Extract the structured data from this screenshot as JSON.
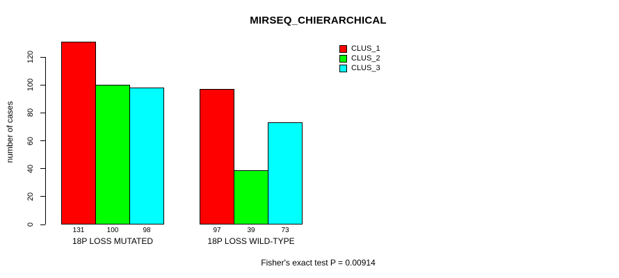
{
  "title": "MIRSEQ_CHIERARCHICAL",
  "chart_data": {
    "type": "bar",
    "categories": [
      "18P LOSS MUTATED",
      "18P LOSS WILD-TYPE"
    ],
    "series": [
      {
        "name": "CLUS_1",
        "color": "#FF0000",
        "values": [
          131,
          97
        ]
      },
      {
        "name": "CLUS_2",
        "color": "#00FF00",
        "values": [
          100,
          39
        ]
      },
      {
        "name": "CLUS_3",
        "color": "#00FFFF",
        "values": [
          98,
          73
        ]
      }
    ],
    "bar_value_labels": [
      [
        131,
        100,
        98
      ],
      [
        97,
        39,
        73
      ]
    ],
    "ylabel": "number of cases",
    "yticks": [
      0,
      20,
      40,
      60,
      80,
      100,
      120
    ],
    "ylim": [
      0,
      131
    ],
    "grid": false,
    "legend_position": "top-right",
    "bar_border_color": "#000000"
  },
  "footer": {
    "note": "Fisher's exact test P = 0.00914"
  }
}
